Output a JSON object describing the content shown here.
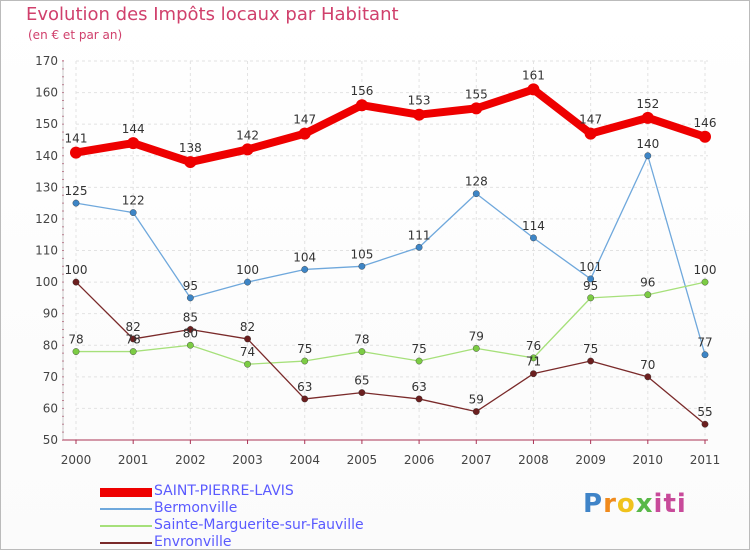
{
  "title": "Evolution des Impôts locaux par Habitant",
  "subtitle": "(en € et par an)",
  "logo": {
    "text": "Proxiti",
    "letters": [
      "P",
      "r",
      "o",
      "x",
      "iti"
    ]
  },
  "chart_data": {
    "type": "line",
    "title": "Evolution des Impôts locaux par Habitant",
    "ylabel": "(en € et par an)",
    "xlabel": "",
    "categories": [
      "2000",
      "2001",
      "2002",
      "2003",
      "2004",
      "2005",
      "2006",
      "2007",
      "2008",
      "2009",
      "2010",
      "2011"
    ],
    "ylim": [
      50,
      170
    ],
    "yticks": [
      50,
      60,
      70,
      80,
      90,
      100,
      110,
      120,
      130,
      140,
      150,
      160,
      170
    ],
    "grid": true,
    "legend_position": "bottom-left",
    "series": [
      {
        "name": "SAINT-PIERRE-LAVIS",
        "color": "#ee0000",
        "dot_color": "#ee0000",
        "emphasis": true,
        "values": [
          141,
          144,
          138,
          142,
          147,
          156,
          153,
          155,
          161,
          147,
          152,
          146
        ]
      },
      {
        "name": "Bermonville",
        "color": "#6fa8dc",
        "dot_color": "#3d85c6",
        "emphasis": false,
        "values": [
          125,
          122,
          95,
          100,
          104,
          105,
          111,
          128,
          114,
          101,
          140,
          77
        ]
      },
      {
        "name": "Sainte-Marguerite-sur-Fauville",
        "color": "#a6e07a",
        "dot_color": "#7ccc44",
        "emphasis": false,
        "values": [
          78,
          78,
          80,
          74,
          75,
          78,
          75,
          79,
          76,
          95,
          96,
          100
        ]
      },
      {
        "name": "Envronville",
        "color": "#7a2a2a",
        "dot_color": "#6b1f1f",
        "emphasis": false,
        "values": [
          100,
          82,
          85,
          82,
          63,
          65,
          63,
          59,
          71,
          75,
          70,
          55
        ]
      }
    ]
  }
}
